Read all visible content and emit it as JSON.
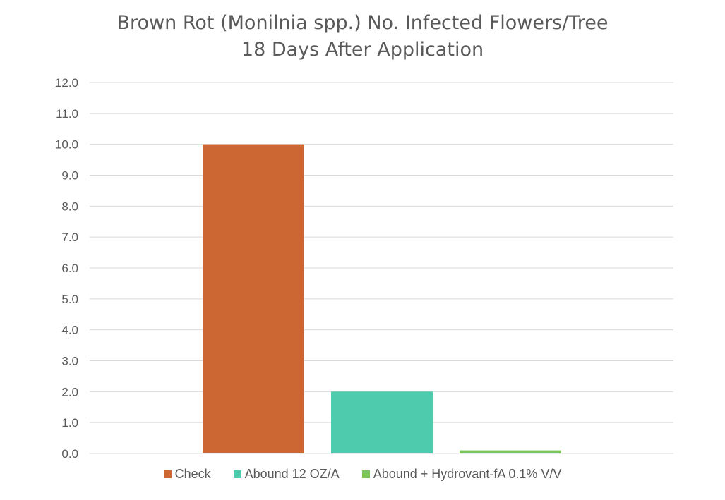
{
  "chart_data": {
    "type": "bar",
    "title_line1": "Brown Rot (Monilnia spp.) No. Infected Flowers/Tree",
    "title_line2": "18 Days After Application",
    "xlabel": "",
    "ylabel": "",
    "ylim": [
      0,
      12
    ],
    "ytick_step": 1,
    "yticks": [
      "0.0",
      "1.0",
      "2.0",
      "3.0",
      "4.0",
      "5.0",
      "6.0",
      "7.0",
      "8.0",
      "9.0",
      "10.0",
      "11.0",
      "12.0"
    ],
    "grid": true,
    "legend_position": "bottom",
    "series": [
      {
        "name": "Check",
        "value": 10.0,
        "color": "#cc6633"
      },
      {
        "name": "Abound 12 OZ/A",
        "value": 2.0,
        "color": "#4ecbad"
      },
      {
        "name": "Abound + Hydrovant-fA 0.1% V/V",
        "value": 0.1,
        "color": "#7dc55a"
      }
    ]
  }
}
